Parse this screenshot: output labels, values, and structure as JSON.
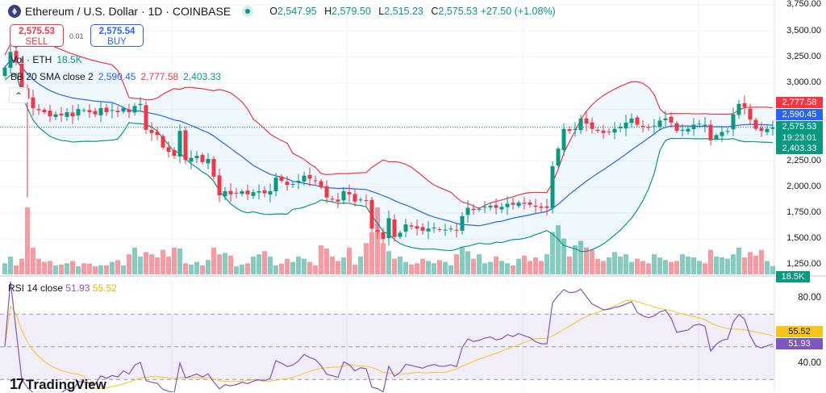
{
  "header": {
    "title": "Ethereum / U.S. Dollar · 1D · COINBASE",
    "ohlc": {
      "o_label": "O",
      "o": "2,547.95",
      "h_label": "H",
      "h": "2,579.50",
      "l_label": "L",
      "l": "2,515.23",
      "c_label": "C",
      "c": "2,575.53",
      "change": "+27.50 (+1.08%)"
    }
  },
  "trade": {
    "sell_price": "2,575.53",
    "sell_label": "SELL",
    "spread": "0.01",
    "buy_price": "2,575.54",
    "buy_label": "BUY"
  },
  "legend": {
    "vol_label": "Vol · ETH",
    "vol_value": "18.5K",
    "bb_label": "BB 20 SMA close 2",
    "bb_basis": "2,590.45",
    "bb_upper": "2,777.58",
    "bb_lower": "2,403.33"
  },
  "price_axis": {
    "ticks": [
      "3,750.00",
      "3,500.00",
      "3,250.00",
      "3,000.00",
      "2,250.00",
      "2,000.00",
      "1,750.00",
      "1,500.00",
      "1,250.00"
    ]
  },
  "price_badges": {
    "upper": "2,777.58",
    "basis": "2,590.45",
    "last": "2,575.53",
    "countdown": "19:23:01",
    "lower": "2,403.33",
    "volume": "18.5K"
  },
  "rsi": {
    "label": "RSI 14 close",
    "rsi_value": "51.93",
    "ma_value": "55.52",
    "ticks": [
      "80.00",
      "40.00"
    ]
  },
  "branding": {
    "logo": "TradingView"
  },
  "colors": {
    "up": "#089981",
    "down": "#f23645",
    "bb_basis": "#2962ff",
    "bb_upper": "#f23645",
    "bb_lower": "#089981",
    "rsi": "#7e57c2",
    "rsi_ma": "#f7c51e"
  },
  "chart_data": {
    "type": "candlestick",
    "symbol": "ETH/USD",
    "interval": "1D",
    "price_range": [
      1250,
      3750
    ],
    "rsi_range": [
      30,
      80
    ],
    "rsi_bands": [
      70,
      50,
      30
    ],
    "indicators": [
      "BB 20 SMA close 2",
      "Volume",
      "RSI 14 close"
    ],
    "closes": [
      3150,
      3300,
      3200,
      2950,
      2850,
      2760,
      2740,
      2720,
      2680,
      2700,
      2690,
      2720,
      2680,
      2750,
      2740,
      2720,
      2700,
      2760,
      2720,
      2740,
      2720,
      2760,
      2720,
      2780,
      2800,
      2550,
      2520,
      2500,
      2380,
      2340,
      2300,
      2540,
      2260,
      2280,
      2300,
      2240,
      2270,
      2100,
      1920,
      1960,
      1930,
      1940,
      1960,
      1930,
      1950,
      1960,
      1940,
      1960,
      2090,
      2060,
      2020,
      2030,
      2060,
      2110,
      2080,
      2060,
      2000,
      1900,
      1880,
      1860,
      1960,
      1930,
      1860,
      1880,
      1870,
      1600,
      1570,
      1500,
      1700,
      1520,
      1560,
      1640,
      1620,
      1600,
      1580,
      1600,
      1610,
      1590,
      1590,
      1600,
      1580,
      1720,
      1800,
      1780,
      1790,
      1810,
      1820,
      1800,
      1810,
      1840,
      1830,
      1850,
      1840,
      1830,
      1810,
      1800,
      1800,
      2200,
      2370,
      2560,
      2540,
      2560,
      2660,
      2610,
      2560,
      2540,
      2520,
      2530,
      2560,
      2580,
      2620,
      2660,
      2600,
      2580,
      2570,
      2590,
      2640,
      2660,
      2620,
      2540,
      2550,
      2560,
      2600,
      2610,
      2600,
      2450,
      2500,
      2530,
      2540,
      2700,
      2800,
      2770,
      2650,
      2560,
      2540,
      2560,
      2575.53
    ],
    "volumes_k": [
      25,
      40,
      20,
      35,
      150,
      60,
      35,
      28,
      30,
      20,
      22,
      25,
      30,
      18,
      25,
      24,
      18,
      20,
      20,
      28,
      32,
      20,
      45,
      60,
      40,
      50,
      45,
      38,
      55,
      40,
      60,
      58,
      25,
      22,
      28,
      20,
      32,
      60,
      45,
      48,
      42,
      18,
      22,
      25,
      40,
      45,
      52,
      40,
      20,
      24,
      35,
      28,
      40,
      35,
      28,
      20,
      65,
      58,
      40,
      30,
      38,
      60,
      22,
      40,
      70,
      95,
      150,
      70,
      52,
      35,
      40,
      28,
      22,
      25,
      35,
      30,
      25,
      32,
      28,
      20,
      45,
      60,
      52,
      35,
      45,
      25,
      28,
      40,
      30,
      25,
      20,
      35,
      42,
      30,
      38,
      30,
      45,
      95,
      110,
      80,
      40,
      65,
      75,
      60,
      55,
      35,
      30,
      38,
      50,
      40,
      45,
      28,
      35,
      30,
      25,
      45,
      38,
      32,
      28,
      30,
      45,
      40,
      38,
      30,
      25,
      55,
      40,
      38,
      35,
      45,
      60,
      38,
      50,
      42,
      55,
      30,
      18.5
    ]
  }
}
